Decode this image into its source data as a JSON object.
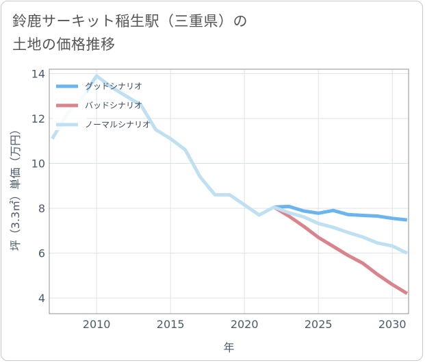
{
  "chart_data": {
    "type": "line",
    "title": "鈴鹿サーキット稲生駅（三重県）の\n土地の価格推移",
    "xlabel": "年",
    "ylabel": "坪（3.3㎡）単価（万円）",
    "xlim": [
      2006.8,
      2031.1
    ],
    "ylim": [
      3.3,
      14.2
    ],
    "x_ticks": [
      2010,
      2015,
      2020,
      2025,
      2030
    ],
    "y_ticks": [
      4,
      6,
      8,
      10,
      12,
      14
    ],
    "grid": true,
    "legend_position": "top-left",
    "series": [
      {
        "name": "グッドシナリオ",
        "color": "#6cb4ee",
        "x": [
          2022,
          2023,
          2024,
          2025,
          2026,
          2027,
          2028,
          2029,
          2030,
          2031
        ],
        "values": [
          8.05,
          8.08,
          7.88,
          7.78,
          7.9,
          7.72,
          7.68,
          7.65,
          7.55,
          7.48
        ]
      },
      {
        "name": "バッドシナリオ",
        "color": "#d9848c",
        "x": [
          2022,
          2023,
          2024,
          2025,
          2026,
          2027,
          2028,
          2029,
          2030,
          2031
        ],
        "values": [
          8.05,
          7.65,
          7.2,
          6.7,
          6.3,
          5.9,
          5.55,
          5.05,
          4.6,
          4.2
        ]
      },
      {
        "name": "ノーマルシナリオ",
        "color": "#bfe0f0",
        "x": [
          2007,
          2008,
          2009,
          2010,
          2011,
          2012,
          2013,
          2014,
          2015,
          2016,
          2017,
          2018,
          2019,
          2020,
          2021,
          2022,
          2023,
          2024,
          2025,
          2026,
          2027,
          2028,
          2029,
          2030,
          2031
        ],
        "values": [
          11.1,
          12.2,
          12.9,
          13.9,
          13.4,
          13.0,
          12.6,
          11.5,
          11.1,
          10.6,
          9.4,
          8.6,
          8.6,
          8.15,
          7.7,
          8.05,
          7.8,
          7.62,
          7.32,
          7.15,
          6.92,
          6.72,
          6.45,
          6.32,
          6.0
        ]
      }
    ]
  }
}
